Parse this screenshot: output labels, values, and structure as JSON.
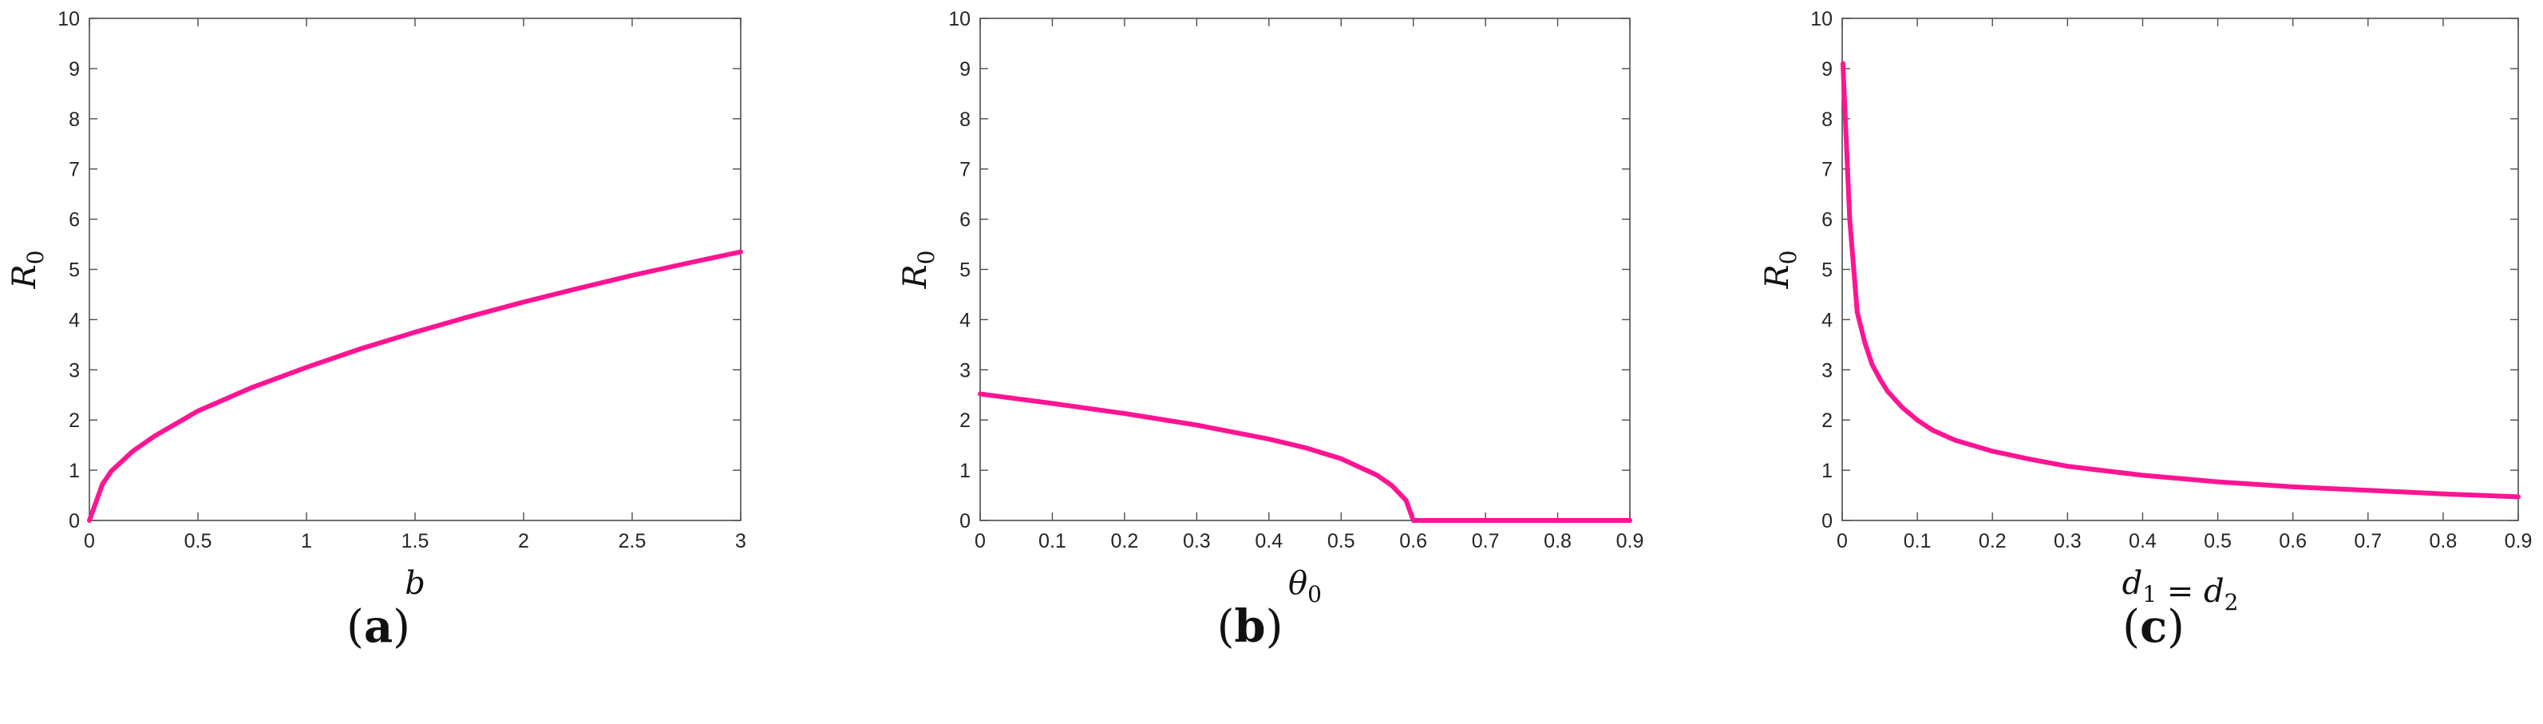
{
  "accent": "#ff1493",
  "chart_data": [
    {
      "type": "line",
      "caption": "(a)",
      "xlabel": "b",
      "ylabel": "R0",
      "xlim": [
        0,
        3
      ],
      "ylim": [
        0,
        10
      ],
      "xticks": [
        "0",
        "0.5",
        "1",
        "1.5",
        "2",
        "2.5",
        "3"
      ],
      "xtick_values": [
        0,
        0.5,
        1,
        1.5,
        2,
        2.5,
        3
      ],
      "yticks": [
        "0",
        "1",
        "2",
        "3",
        "4",
        "5",
        "6",
        "7",
        "8",
        "9",
        "10"
      ],
      "grid": false,
      "series": [
        {
          "x": [
            0,
            0.06,
            0.1,
            0.2,
            0.3,
            0.5,
            0.75,
            1,
            1.25,
            1.5,
            1.75,
            2,
            2.25,
            2.5,
            2.75,
            3
          ],
          "y": [
            0,
            0.72,
            0.98,
            1.38,
            1.68,
            2.18,
            2.65,
            3.05,
            3.42,
            3.75,
            4.06,
            4.35,
            4.62,
            4.88,
            5.12,
            5.35
          ]
        }
      ]
    },
    {
      "type": "line",
      "caption": "(b)",
      "xlabel": "θ0",
      "ylabel": "R0",
      "xlim": [
        0,
        0.9
      ],
      "ylim": [
        0,
        10
      ],
      "xticks": [
        "0",
        "0.1",
        "0.2",
        "0.3",
        "0.4",
        "0.5",
        "0.6",
        "0.7",
        "0.8",
        "0.9"
      ],
      "xtick_values": [
        0,
        0.1,
        0.2,
        0.3,
        0.4,
        0.5,
        0.6,
        0.7,
        0.8,
        0.9
      ],
      "yticks": [
        "0",
        "1",
        "2",
        "3",
        "4",
        "5",
        "6",
        "7",
        "8",
        "9",
        "10"
      ],
      "grid": false,
      "series": [
        {
          "x": [
            0,
            0.1,
            0.2,
            0.3,
            0.4,
            0.45,
            0.5,
            0.55,
            0.57,
            0.59,
            0.6,
            0.7,
            0.8,
            0.9
          ],
          "y": [
            2.52,
            2.33,
            2.13,
            1.9,
            1.62,
            1.45,
            1.23,
            0.9,
            0.7,
            0.4,
            0.0,
            0.0,
            0.0,
            0.0
          ]
        }
      ]
    },
    {
      "type": "line",
      "caption": "(c)",
      "xlabel": "d1 = d2",
      "ylabel": "R0",
      "xlim": [
        0,
        0.9
      ],
      "ylim": [
        0,
        10
      ],
      "xticks": [
        "0",
        "0.1",
        "0.2",
        "0.3",
        "0.4",
        "0.5",
        "0.6",
        "0.7",
        "0.8",
        "0.9"
      ],
      "xtick_values": [
        0,
        0.1,
        0.2,
        0.3,
        0.4,
        0.5,
        0.6,
        0.7,
        0.8,
        0.9
      ],
      "yticks": [
        "0",
        "1",
        "2",
        "3",
        "4",
        "5",
        "6",
        "7",
        "8",
        "9",
        "10"
      ],
      "grid": false,
      "series": [
        {
          "x": [
            0.001,
            0.01,
            0.02,
            0.03,
            0.04,
            0.05,
            0.06,
            0.08,
            0.1,
            0.12,
            0.15,
            0.2,
            0.25,
            0.3,
            0.4,
            0.5,
            0.6,
            0.7,
            0.8,
            0.9
          ],
          "y": [
            9.1,
            6.0,
            4.15,
            3.55,
            3.1,
            2.82,
            2.58,
            2.25,
            2.0,
            1.8,
            1.6,
            1.38,
            1.22,
            1.08,
            0.9,
            0.77,
            0.67,
            0.6,
            0.53,
            0.47
          ]
        }
      ]
    }
  ]
}
